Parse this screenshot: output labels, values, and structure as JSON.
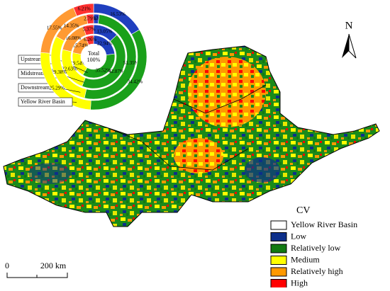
{
  "chart_data": {
    "type": "donut",
    "center_text": [
      "Total",
      "100%"
    ],
    "colors": [
      "#1f3fbf",
      "#1aa01a",
      "#ffff00",
      "#ff9a33",
      "#ff3030"
    ],
    "series": [
      {
        "name": "Upstream",
        "values": [
          22.94,
          35.52,
          19.54,
          15.74,
          6.26
        ],
        "value_labels": [
          "22.94%",
          "35.52%",
          "19.54%",
          "15.74%",
          "6.26%"
        ]
      },
      {
        "name": "Midstream",
        "values": [
          13.05,
          42.87,
          22.63,
          16.08,
          5.37
        ],
        "value_labels": [
          "13.05%",
          "42.87%",
          "22.63%",
          "16.08%",
          "5.37%"
        ]
      },
      {
        "name": "Downstream",
        "values": [
          2.13,
          51.35,
          29.38,
          14.35,
          2.79
        ],
        "value_labels": [
          "2.13%",
          "51.35%",
          "29.38%",
          "14.35%",
          "2.79%"
        ]
      },
      {
        "name": "Yellow River Basin",
        "values": [
          16.53,
          34.42,
          25.29,
          17.55,
          6.21
        ],
        "value_labels": [
          "16.53%",
          "34.42%",
          "25.29%",
          "17.55%",
          "6.21%"
        ]
      }
    ]
  },
  "legend": {
    "title": "CV",
    "items": [
      {
        "label": "Yellow River Basin",
        "color": "#ffffff"
      },
      {
        "label": "Low",
        "color": "#0d2f8a"
      },
      {
        "label": "Relatively low",
        "color": "#127a12"
      },
      {
        "label": "Medium",
        "color": "#ffff00"
      },
      {
        "label": "Relatively high",
        "color": "#ff9900"
      },
      {
        "label": "High",
        "color": "#ff0000"
      }
    ]
  },
  "north_arrow": {
    "label": "N"
  },
  "scale_bar": {
    "start": "0",
    "end": "200 km"
  }
}
